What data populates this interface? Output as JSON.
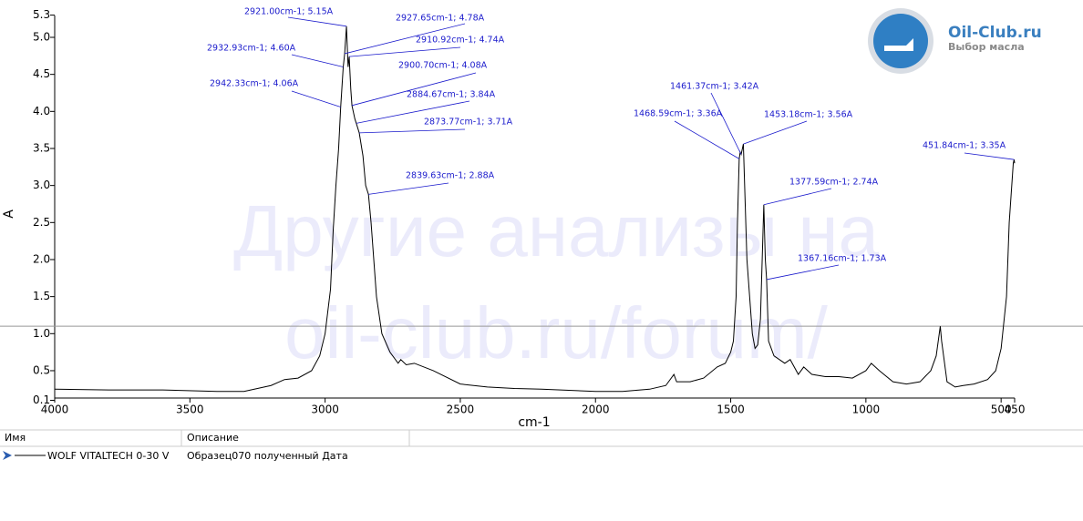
{
  "chart_data": {
    "type": "line",
    "xlabel": "cm-1",
    "ylabel": "A",
    "xlim": [
      4000,
      450
    ],
    "ylim": [
      0.1,
      5.3
    ],
    "xticks": [
      4000,
      3500,
      3000,
      2500,
      2000,
      1500,
      1000,
      500,
      450
    ],
    "yticks": [
      0.1,
      0.5,
      {
        "value": 1.0,
        "label": "1.0"
      },
      1.5,
      {
        "value": 2.0,
        "label": "2.0"
      },
      2.5,
      {
        "value": 3.0,
        "label": "3.0"
      },
      3.5,
      {
        "value": 4.0,
        "label": "4.0"
      },
      4.5,
      {
        "value": 5.0,
        "label": "5.0"
      },
      5.3
    ],
    "grid": false,
    "cursor_y": 1.1,
    "x": [
      4000,
      3800,
      3600,
      3400,
      3300,
      3200,
      3150,
      3100,
      3050,
      3020,
      3000,
      2980,
      2970,
      2960,
      2950,
      2942.33,
      2932.93,
      2927.65,
      2921.0,
      2915,
      2910.92,
      2905,
      2900.7,
      2890,
      2884.67,
      2873.77,
      2860,
      2850,
      2839.63,
      2830,
      2810,
      2790,
      2760,
      2730,
      2720,
      2700,
      2670,
      2600,
      2500,
      2400,
      2300,
      2200,
      2000,
      1900,
      1800,
      1740,
      1710,
      1700,
      1650,
      1600,
      1550,
      1520,
      1500,
      1490,
      1480,
      1475,
      1468.59,
      1465,
      1461.37,
      1453.18,
      1440,
      1420,
      1410,
      1400,
      1390,
      1377.59,
      1372,
      1367.16,
      1360,
      1340,
      1300,
      1280,
      1250,
      1230,
      1200,
      1150,
      1100,
      1050,
      1000,
      980,
      950,
      900,
      850,
      800,
      760,
      740,
      725,
      720,
      700,
      670,
      640,
      600,
      550,
      520,
      500,
      480,
      470,
      455,
      451.84,
      450
    ],
    "series": [
      {
        "name": "WOLF VITALTECH 0-30 V",
        "color": "#000000",
        "values": [
          0.25,
          0.24,
          0.24,
          0.22,
          0.22,
          0.3,
          0.38,
          0.4,
          0.5,
          0.7,
          1.0,
          1.6,
          2.4,
          3.0,
          3.5,
          4.06,
          4.6,
          4.78,
          5.15,
          4.6,
          4.74,
          4.3,
          4.08,
          3.9,
          3.84,
          3.71,
          3.4,
          3.0,
          2.88,
          2.5,
          1.5,
          1.0,
          0.75,
          0.6,
          0.65,
          0.58,
          0.6,
          0.5,
          0.32,
          0.28,
          0.26,
          0.25,
          0.22,
          0.22,
          0.25,
          0.3,
          0.45,
          0.35,
          0.35,
          0.4,
          0.55,
          0.6,
          0.75,
          0.9,
          1.5,
          2.5,
          3.36,
          3.45,
          3.42,
          3.56,
          2.0,
          1.0,
          0.8,
          0.85,
          1.2,
          2.74,
          2.0,
          1.73,
          0.9,
          0.7,
          0.6,
          0.65,
          0.45,
          0.55,
          0.45,
          0.42,
          0.42,
          0.4,
          0.5,
          0.6,
          0.5,
          0.35,
          0.32,
          0.35,
          0.5,
          0.7,
          1.1,
          0.9,
          0.35,
          0.28,
          0.3,
          0.32,
          0.38,
          0.5,
          0.8,
          1.5,
          2.5,
          3.3,
          3.35,
          3.3
        ]
      }
    ],
    "annotations": [
      {
        "x": 2921.0,
        "y": 5.15,
        "label": "2921.00cm-1; 5.15A"
      },
      {
        "x": 2927.65,
        "y": 4.78,
        "label": "2927.65cm-1; 4.78A"
      },
      {
        "x": 2910.92,
        "y": 4.74,
        "label": "2910.92cm-1; 4.74A"
      },
      {
        "x": 2932.93,
        "y": 4.6,
        "label": "2932.93cm-1; 4.60A"
      },
      {
        "x": 2900.7,
        "y": 4.08,
        "label": "2900.70cm-1; 4.08A"
      },
      {
        "x": 2942.33,
        "y": 4.06,
        "label": "2942.33cm-1; 4.06A"
      },
      {
        "x": 2884.67,
        "y": 3.84,
        "label": "2884.67cm-1; 3.84A"
      },
      {
        "x": 2873.77,
        "y": 3.71,
        "label": "2873.77cm-1; 3.71A"
      },
      {
        "x": 2839.63,
        "y": 2.88,
        "label": "2839.63cm-1; 2.88A"
      },
      {
        "x": 1461.37,
        "y": 3.42,
        "label": "1461.37cm-1; 3.42A"
      },
      {
        "x": 1468.59,
        "y": 3.36,
        "label": "1468.59cm-1; 3.36A"
      },
      {
        "x": 1453.18,
        "y": 3.56,
        "label": "1453.18cm-1; 3.56A"
      },
      {
        "x": 1377.59,
        "y": 2.74,
        "label": "1377.59cm-1; 2.74A"
      },
      {
        "x": 1367.16,
        "y": 1.73,
        "label": "1367.16cm-1; 1.73A"
      },
      {
        "x": 451.84,
        "y": 3.35,
        "label": "451.84cm-1; 3.35A"
      }
    ]
  },
  "watermark": [
    "Другие анализы на",
    "oil-club.ru/forum/"
  ],
  "logo": {
    "title": "Oil-Club.ru",
    "subtitle": "Выбор масла"
  },
  "table": {
    "headers": [
      "Имя",
      "Описание"
    ],
    "description": "Образец070 полученный  Дата"
  }
}
